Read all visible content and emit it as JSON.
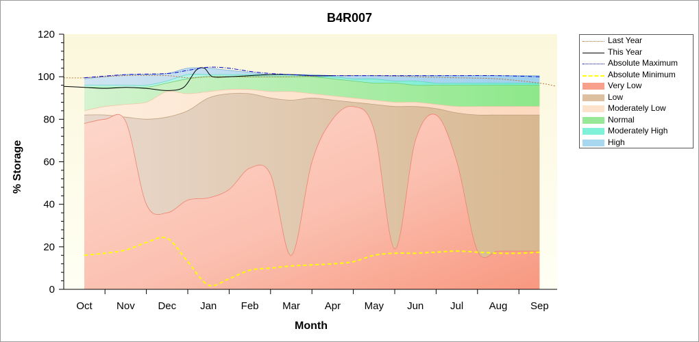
{
  "chart_data": {
    "type": "area",
    "title": "B4R007",
    "xlabel": "Month",
    "ylabel": "% Storage",
    "ylim": [
      0,
      120
    ],
    "yticks": [
      0,
      20,
      40,
      60,
      80,
      100,
      120
    ],
    "categories": [
      "Oct",
      "Nov",
      "Dec",
      "Jan",
      "Feb",
      "Mar",
      "Apr",
      "May",
      "Jun",
      "Jul",
      "Aug",
      "Sep"
    ],
    "grid": false,
    "legend_position": "right",
    "bands": {
      "x": [
        0.0,
        0.5,
        1.0,
        1.5,
        2.0,
        2.5,
        3.0,
        3.5,
        4.0,
        4.5,
        5.0,
        5.5,
        6.0,
        6.5,
        7.0,
        7.5,
        8.0,
        8.5,
        9.0,
        9.5,
        10.0,
        10.5,
        11.0
      ],
      "very_low_top": [
        78,
        80,
        79,
        40,
        36,
        42,
        43,
        47,
        57,
        54,
        16,
        60,
        80,
        86,
        75,
        19,
        70,
        82,
        60,
        18,
        18,
        18,
        18
      ],
      "low_top": [
        82,
        82,
        81,
        80,
        81,
        84,
        90,
        92,
        92,
        90,
        89,
        90,
        89,
        88,
        87,
        86,
        86,
        85,
        83,
        82,
        82,
        82,
        82
      ],
      "mod_low_top": [
        84,
        86,
        87,
        88,
        93,
        92,
        93,
        94,
        94,
        93,
        93,
        92,
        91,
        90,
        89,
        88,
        88,
        87,
        86,
        86,
        86,
        86,
        86
      ],
      "normal_top": [
        95,
        95,
        95,
        95,
        97,
        99,
        100,
        100,
        100,
        100,
        100,
        100,
        99,
        98,
        97,
        97,
        96,
        96,
        96,
        96,
        96,
        96,
        96
      ],
      "mod_high_top": [
        96,
        96,
        96,
        96,
        98,
        101,
        101,
        101,
        101,
        101,
        101,
        100,
        100,
        99,
        99,
        98,
        98,
        97,
        97,
        97,
        97,
        97,
        97
      ],
      "high_top": [
        99,
        100,
        101,
        101,
        101.5,
        104,
        104,
        103,
        102,
        101,
        101,
        101,
        100.5,
        100.5,
        100.5,
        100.5,
        100.5,
        100.5,
        100.5,
        100.5,
        100.5,
        100.5,
        100.5
      ]
    },
    "series": [
      {
        "name": "Last Year",
        "color": "#b87333",
        "style": "dotted",
        "x": [
          -0.5,
          0,
          1,
          2,
          2.5,
          3,
          4,
          5,
          6,
          7,
          8,
          9,
          10,
          11,
          11.4
        ],
        "values": [
          99.5,
          99.5,
          100.5,
          100.5,
          99.5,
          100,
          100,
          100,
          100.5,
          100.5,
          100,
          99.5,
          99,
          97,
          95.5
        ]
      },
      {
        "name": "This Year",
        "color": "#000000",
        "style": "solid",
        "x": [
          -0.5,
          0,
          0.5,
          1,
          1.5,
          2,
          2.4,
          2.7,
          2.9,
          3.1,
          3.5,
          4,
          4.5,
          5,
          5.5,
          6
        ],
        "values": [
          95.5,
          95,
          94.5,
          95,
          94.5,
          93.5,
          95,
          103,
          104,
          100,
          100,
          100.5,
          101,
          101,
          100.5,
          100.5
        ]
      },
      {
        "name": "Absolute Maximum",
        "color": "#0000cc",
        "style": "dashdot",
        "x": [
          0,
          1,
          2,
          2.5,
          3,
          3.5,
          4,
          4.5,
          5,
          5.5,
          6,
          7,
          8,
          9,
          10,
          11
        ],
        "values": [
          99.5,
          101,
          101.5,
          103,
          104.5,
          104,
          102.5,
          101.5,
          101,
          100.5,
          100.5,
          100.5,
          100.5,
          100.5,
          100.5,
          100
        ]
      },
      {
        "name": "Absolute Minimum",
        "color": "#ffff00",
        "style": "dashed",
        "x": [
          0,
          0.5,
          1,
          1.5,
          2,
          2.5,
          3,
          3.5,
          4,
          4.5,
          5,
          5.5,
          6,
          6.5,
          7,
          7.5,
          8,
          8.5,
          9,
          9.5,
          10,
          10.5,
          11
        ],
        "values": [
          16,
          17,
          18.5,
          22,
          24,
          13,
          2,
          5,
          9,
          10,
          11,
          11.5,
          12,
          13,
          16,
          17,
          17,
          17.5,
          18,
          17.5,
          17,
          17,
          17.5
        ]
      },
      {
        "name": "Very Low",
        "color": "#f8a08c",
        "style": "fill"
      },
      {
        "name": "Low",
        "color": "#dcc0a0",
        "style": "fill"
      },
      {
        "name": "Moderately Low",
        "color": "#fde3cc",
        "style": "fill"
      },
      {
        "name": "Normal",
        "color": "#98e898",
        "style": "fill"
      },
      {
        "name": "Moderately High",
        "color": "#80f0d8",
        "style": "fill"
      },
      {
        "name": "High",
        "color": "#a8d8f0",
        "style": "fill"
      }
    ]
  }
}
